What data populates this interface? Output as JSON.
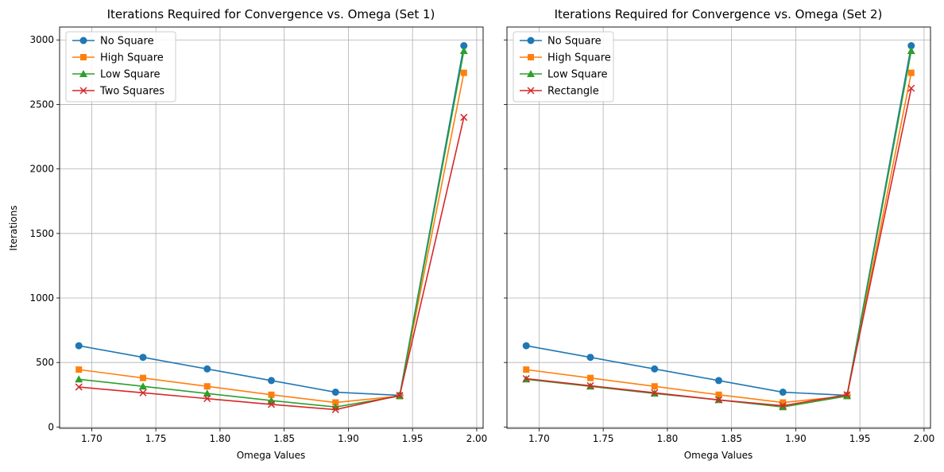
{
  "chart_data": [
    {
      "type": "line",
      "title": "Iterations Required for Convergence vs. Omega (Set 1)",
      "xlabel": "Omega Values",
      "ylabel": "Iterations",
      "xlim": [
        1.675,
        2.005
      ],
      "ylim": [
        -10,
        3100
      ],
      "xticks": [
        1.7,
        1.75,
        1.8,
        1.85,
        1.9,
        1.95,
        2.0
      ],
      "xtick_labels": [
        "1.70",
        "1.75",
        "1.80",
        "1.85",
        "1.90",
        "1.95",
        "2.00"
      ],
      "yticks": [
        0,
        500,
        1000,
        1500,
        2000,
        2500,
        3000
      ],
      "ytick_labels": [
        "0",
        "500",
        "1000",
        "1500",
        "2000",
        "2500",
        "3000"
      ],
      "grid": true,
      "legend": "top-left",
      "x": [
        1.69,
        1.74,
        1.79,
        1.84,
        1.89,
        1.94,
        1.99
      ],
      "series": [
        {
          "name": "No Square",
          "color": "#1f77b4",
          "marker": "circle",
          "values": [
            630,
            540,
            450,
            360,
            270,
            245,
            2955
          ]
        },
        {
          "name": "High Square",
          "color": "#ff7f0e",
          "marker": "square",
          "values": [
            445,
            380,
            315,
            250,
            190,
            240,
            2745
          ]
        },
        {
          "name": "Low Square",
          "color": "#2ca02c",
          "marker": "triangle",
          "values": [
            370,
            315,
            260,
            205,
            155,
            240,
            2915
          ]
        },
        {
          "name": "Two Squares",
          "color": "#d62728",
          "marker": "x",
          "values": [
            310,
            265,
            220,
            175,
            135,
            245,
            2400
          ]
        }
      ]
    },
    {
      "type": "line",
      "title": "Iterations Required for Convergence vs. Omega (Set 2)",
      "xlabel": "Omega Values",
      "ylabel": "",
      "xlim": [
        1.675,
        2.005
      ],
      "ylim": [
        -10,
        3100
      ],
      "xticks": [
        1.7,
        1.75,
        1.8,
        1.85,
        1.9,
        1.95,
        2.0
      ],
      "xtick_labels": [
        "1.70",
        "1.75",
        "1.80",
        "1.85",
        "1.90",
        "1.95",
        "2.00"
      ],
      "yticks": [
        0,
        500,
        1000,
        1500,
        2000,
        2500,
        3000
      ],
      "ytick_labels": [],
      "grid": true,
      "legend": "top-left",
      "x": [
        1.69,
        1.74,
        1.79,
        1.84,
        1.89,
        1.94,
        1.99
      ],
      "series": [
        {
          "name": "No Square",
          "color": "#1f77b4",
          "marker": "circle",
          "values": [
            630,
            540,
            450,
            360,
            270,
            245,
            2955
          ]
        },
        {
          "name": "High Square",
          "color": "#ff7f0e",
          "marker": "square",
          "values": [
            445,
            380,
            315,
            250,
            190,
            240,
            2745
          ]
        },
        {
          "name": "Low Square",
          "color": "#2ca02c",
          "marker": "triangle",
          "values": [
            370,
            315,
            260,
            210,
            155,
            240,
            2915
          ]
        },
        {
          "name": "Rectangle",
          "color": "#d62728",
          "marker": "x",
          "values": [
            375,
            320,
            265,
            210,
            165,
            250,
            2625
          ]
        }
      ]
    }
  ]
}
